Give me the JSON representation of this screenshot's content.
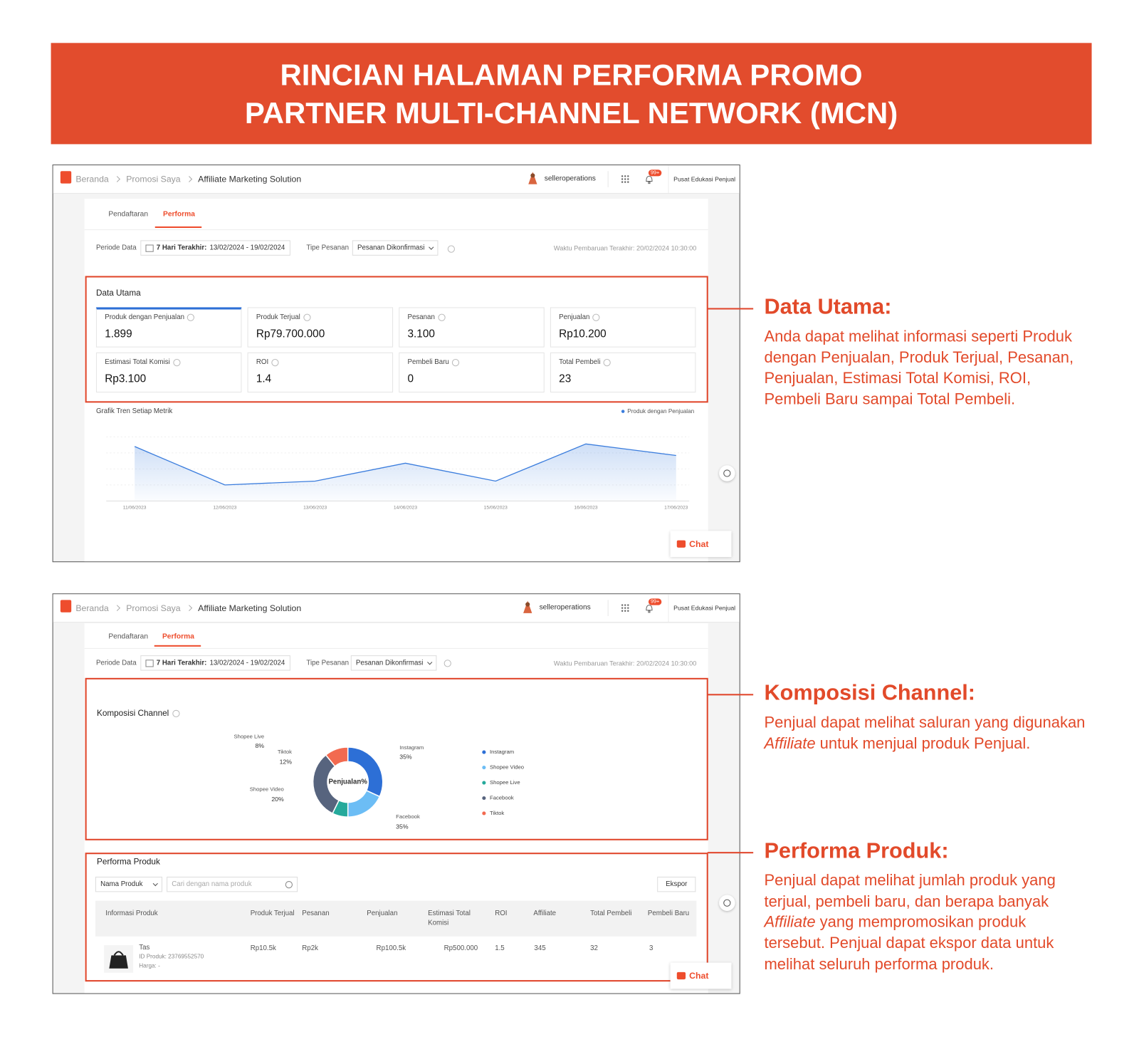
{
  "header": {
    "title_line1": "RINCIAN HALAMAN PERFORMA PROMO",
    "title_line2": "PARTNER MULTI-CHANNEL NETWORK (MCN)"
  },
  "nav": {
    "breadcrumb": [
      "Beranda",
      "Promosi Saya",
      "Affiliate Marketing Solution"
    ],
    "user": "selleroperations",
    "badge": "99+",
    "help": "Pusat Edukasi Penjual"
  },
  "tabs": [
    "Pendaftaran",
    "Performa"
  ],
  "filters": {
    "period_label": "Periode Data",
    "period_prefix": "7 Hari Terakhir:",
    "period_range": "13/02/2024 - 19/02/2024",
    "order_type_label": "Tipe Pesanan",
    "order_type": "Pesanan Dikonfirmasi",
    "updated": "Waktu Pembaruan Terakhir: 20/02/2024 10:30:00"
  },
  "data_utama": {
    "title": "Data Utama",
    "metrics": [
      {
        "label": "Produk dengan Penjualan",
        "value": "1.899"
      },
      {
        "label": "Produk Terjual",
        "value": "Rp79.700.000"
      },
      {
        "label": "Pesanan",
        "value": "3.100"
      },
      {
        "label": "Penjualan",
        "value": "Rp10.200"
      },
      {
        "label": "Estimasi Total Komisi",
        "value": "Rp3.100"
      },
      {
        "label": "ROI",
        "value": "1.4"
      },
      {
        "label": "Pembeli Baru",
        "value": "0"
      },
      {
        "label": "Total Pembeli",
        "value": "23"
      }
    ]
  },
  "chat": "Chat",
  "chart_data": [
    {
      "type": "line",
      "title": "Grafik Tren Setiap Metrik",
      "categories": [
        "11/06/2023",
        "12/06/2023",
        "13/06/2023",
        "14/06/2023",
        "15/06/2023",
        "16/06/2023",
        "17/06/2023"
      ],
      "series": [
        {
          "name": "Produk dengan Penjualan",
          "color": "#3b7ddd",
          "values": [
            85,
            25,
            31,
            59,
            31,
            89,
            71
          ]
        }
      ],
      "ylim": [
        0,
        100
      ]
    },
    {
      "type": "pie",
      "title": "Komposisi Channel",
      "center_label": "Penjualan%",
      "categories": [
        "Instagram",
        "Shopee Video",
        "Shopee Live",
        "Facebook",
        "Tiktok"
      ],
      "values": [
        35,
        20,
        8,
        35,
        12
      ],
      "value_labels": [
        "35%",
        "20%",
        "8%",
        "35%",
        "12%"
      ],
      "colors": [
        "#2d6fd6",
        "#6cbdf5",
        "#25a99b",
        "#57647e",
        "#f26a50"
      ]
    }
  ],
  "performa_produk": {
    "title": "Performa Produk",
    "filter": "Nama Produk",
    "search_placeholder": "Cari dengan nama produk",
    "export": "Ekspor",
    "columns": [
      "Informasi Produk",
      "Produk Terjual",
      "Pesanan",
      "Penjualan",
      "Estimasi Total Komisi",
      "ROI",
      "Affiliate",
      "Total Pembeli",
      "Pembeli Baru"
    ],
    "row": {
      "name": "Tas",
      "id": "ID Produk: 23769552570",
      "price": "Harga: -",
      "cells": [
        "Rp10.5k",
        "Rp2k",
        "Rp100.5k",
        "Rp500.000",
        "1.5",
        "345",
        "32",
        "3"
      ]
    }
  },
  "notes": [
    {
      "heading": "Data Utama:",
      "body_before": "Anda dapat melihat informasi seperti Produk dengan Penjualan, Produk Terjual, Pesanan, Penjualan, Estimasi Total Komisi, ROI, Pembeli Baru sampai Total Pembeli."
    },
    {
      "heading": "Komposisi Channel:",
      "body_before": "Penjual dapat melihat saluran yang digunakan ",
      "body_em": "Affiliate",
      "body_after": " untuk menjual produk Penjual."
    },
    {
      "heading": "Performa Produk:",
      "body_before": "Penjual dapat melihat jumlah produk yang terjual, pembeli baru, dan berapa banyak ",
      "body_em": "Affiliate",
      "body_after": " yang mempromosikan produk tersebut. Penjual dapat ekspor data untuk melihat seluruh performa produk."
    }
  ]
}
